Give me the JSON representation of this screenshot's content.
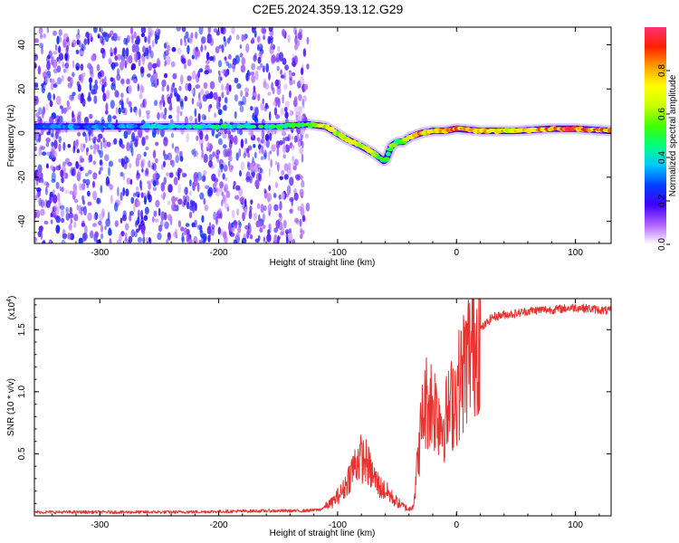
{
  "title": "C2E5.2024.359.13.12.G29",
  "chart_data": [
    {
      "type": "heatmap",
      "name": "spectrogram",
      "xlabel": "Height of straight line (km)",
      "ylabel": "Frequency (Hz)",
      "xlim": [
        -355,
        130
      ],
      "ylim": [
        -50,
        48
      ],
      "xticks": [
        -300,
        -200,
        -100,
        0,
        100
      ],
      "xtick_labels": [
        "-300",
        "-200",
        "-100",
        "0",
        "100"
      ],
      "yticks": [
        -40,
        -20,
        0,
        20,
        40
      ],
      "ytick_labels": [
        "-40",
        "-20",
        "0",
        "20",
        "40"
      ],
      "colorbar": {
        "label": "Normalized spectral amplitude",
        "range": [
          0,
          1
        ],
        "ticks": [
          0.0,
          0.2,
          0.4,
          0.6,
          0.8
        ],
        "tick_labels": [
          "0.0",
          "0.2",
          "0.4",
          "0.6",
          "0.8"
        ],
        "colors": [
          "#ffffff",
          "#b060ff",
          "#4000ff",
          "#0040ff",
          "#00c8ff",
          "#00ff80",
          "#40ff00",
          "#c8ff00",
          "#ffff00",
          "#ffa000",
          "#ff2000",
          "#ff3070"
        ]
      },
      "noise_region_x": [
        -355,
        -125
      ],
      "ridge": {
        "x": [
          -355,
          -300,
          -250,
          -200,
          -150,
          -125,
          -110,
          -95,
          -80,
          -70,
          -60,
          -55,
          -50,
          -45,
          -40,
          -30,
          -20,
          -10,
          0,
          20,
          50,
          80,
          100,
          130
        ],
        "y": [
          3,
          3,
          3,
          3,
          3,
          4,
          3,
          -2,
          -6,
          -9,
          -13,
          -6,
          -4,
          -4,
          -2,
          0,
          1,
          1,
          2,
          1,
          1,
          2,
          2,
          1
        ],
        "amplitude": [
          0.35,
          0.35,
          0.4,
          0.45,
          0.45,
          0.55,
          0.7,
          0.7,
          0.65,
          0.65,
          0.5,
          0.55,
          0.6,
          0.6,
          0.75,
          0.85,
          0.75,
          0.85,
          0.9,
          0.8,
          0.8,
          0.9,
          0.95,
          0.8
        ]
      }
    },
    {
      "type": "line",
      "name": "snr",
      "xlabel": "Height of straight line (km)",
      "ylabel": "SNR (10 * v/v)",
      "multiplier_label": "(x10",
      "multiplier_exponent": "4",
      "xlim": [
        -355,
        130
      ],
      "ylim": [
        0,
        1.75
      ],
      "xticks": [
        -300,
        -200,
        -100,
        0,
        100
      ],
      "xtick_labels": [
        "-300",
        "-200",
        "-100",
        "0",
        "100"
      ],
      "yticks": [
        0.5,
        1.0,
        1.5
      ],
      "ytick_labels": [
        "0.5",
        "1.0",
        "1.5"
      ],
      "series": [
        {
          "name": "SNR",
          "color": "#e8322d",
          "x": [
            -355,
            -320,
            -280,
            -240,
            -200,
            -160,
            -130,
            -115,
            -105,
            -95,
            -88,
            -82,
            -76,
            -70,
            -64,
            -58,
            -52,
            -46,
            -40,
            -36,
            -32,
            -28,
            -24,
            -20,
            -16,
            -12,
            -8,
            -4,
            0,
            5,
            10,
            15,
            20,
            25,
            30,
            40,
            50,
            60,
            70,
            80,
            90,
            100,
            110,
            120,
            130
          ],
          "y": [
            0.03,
            0.03,
            0.03,
            0.03,
            0.035,
            0.04,
            0.04,
            0.05,
            0.1,
            0.2,
            0.35,
            0.45,
            0.42,
            0.3,
            0.22,
            0.18,
            0.12,
            0.08,
            0.05,
            0.1,
            0.5,
            0.85,
            0.95,
            0.9,
            0.85,
            0.75,
            0.8,
            0.9,
            1.0,
            1.15,
            1.3,
            1.4,
            1.5,
            1.55,
            1.6,
            1.62,
            1.63,
            1.65,
            1.66,
            1.66,
            1.67,
            1.68,
            1.67,
            1.66,
            1.65
          ]
        }
      ]
    }
  ]
}
